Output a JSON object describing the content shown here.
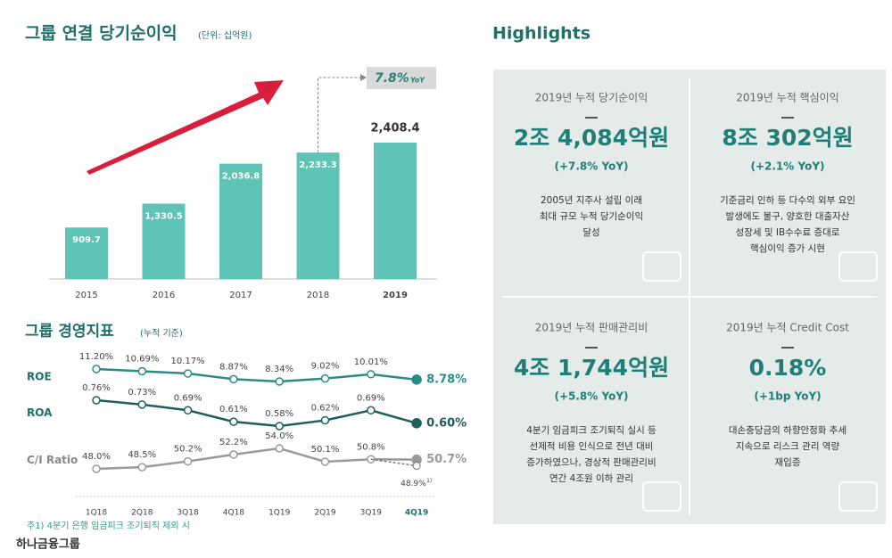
{
  "chart_data": [
    {
      "type": "bar",
      "title": "그룹 연결 당기순이익",
      "subtitle": "(단위: 십억원)",
      "categories": [
        "2015",
        "2016",
        "2017",
        "2018",
        "2019"
      ],
      "values": [
        909.7,
        1330.5,
        2036.8,
        2233.3,
        2408.4
      ],
      "value_labels": [
        "909.7",
        "1,330.5",
        "2,036.8",
        "2,233.3",
        "2,408.4"
      ],
      "color": "#5fc4b5",
      "annotation": "7.8%",
      "annotation_unit": "YoY"
    },
    {
      "type": "line",
      "title": "그룹 경영지표",
      "subtitle": "(누적 기준)",
      "categories": [
        "1Q18",
        "2Q18",
        "3Q18",
        "4Q18",
        "1Q19",
        "2Q19",
        "3Q19",
        "4Q19"
      ],
      "series": [
        {
          "name": "ROE",
          "color": "#2a8c86",
          "values": [
            11.2,
            10.69,
            10.17,
            8.87,
            8.34,
            9.02,
            10.01,
            8.78
          ],
          "value_labels": [
            "11.20%",
            "10.69%",
            "10.17%",
            "8.87%",
            "8.34%",
            "9.02%",
            "10.01%",
            "8.78%"
          ]
        },
        {
          "name": "ROA",
          "color": "#1f5f5b",
          "values": [
            0.76,
            0.73,
            0.69,
            0.61,
            0.58,
            0.62,
            0.69,
            0.6
          ],
          "value_labels": [
            "0.76%",
            "0.73%",
            "0.69%",
            "0.61%",
            "0.58%",
            "0.62%",
            "0.69%",
            "0.60%"
          ]
        },
        {
          "name": "C/I Ratio",
          "color": "#9a9a9a",
          "values": [
            48.0,
            48.5,
            50.2,
            52.2,
            54.0,
            50.1,
            50.8,
            50.7
          ],
          "value_labels": [
            "48.0%",
            "48.5%",
            "50.2%",
            "52.2%",
            "54.0%",
            "50.1%",
            "50.8%",
            "50.7%"
          ]
        }
      ],
      "adjusted": {
        "value": 48.9,
        "label": "48.9%",
        "note": "1)"
      }
    }
  ],
  "footnote": "주1) 4분기 은행 임금피크 조기퇴직 제외 시",
  "logo": "하나금융그룹",
  "highlights": {
    "title": "Highlights",
    "cards": [
      {
        "label": "2019년 누적 당기순이익",
        "value": "2조 4,084억원",
        "yoy": "(+7.8% YoY)",
        "desc": [
          "2005년 지주사 설립 이래",
          "최대 규모 누적 당기순이익",
          "달성"
        ]
      },
      {
        "label": "2019년 누적 핵심이익",
        "value": "8조 302억원",
        "yoy": "(+2.1% YoY)",
        "desc": [
          "기준금리 인하 등 다수의 외부 요인",
          "발생에도 불구, 양호한 대출자산",
          "성장세 및 IB수수료 증대로",
          "핵심이익 증가 시현"
        ]
      },
      {
        "label": "2019년 누적 판매관리비",
        "value": "4조 1,744억원",
        "yoy": "(+5.8% YoY)",
        "desc": [
          "4분기 임금피크 조기퇴직 실시 등",
          "선제적 비용 인식으로 전년 대비",
          "증가하였으나, 경상적 판매관리비",
          "연간 4조원 이하 관리"
        ]
      },
      {
        "label": "2019년 누적 Credit Cost",
        "value": "0.18%",
        "yoy": "(+1bp YoY)",
        "desc": [
          "대손충당금의 하향안정화 추세",
          "지속으로 리스크 관리 역량",
          "재입증"
        ]
      }
    ]
  }
}
